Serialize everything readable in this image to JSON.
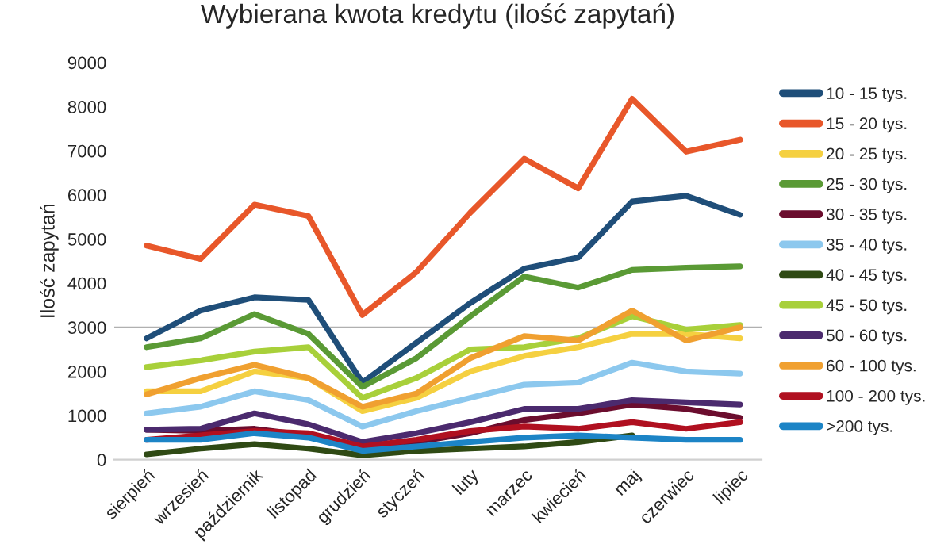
{
  "chart_data": {
    "type": "line",
    "title": "Wybierana kwota kredytu (ilość zapytań)",
    "ylabel": "Ilość zapytań",
    "categories": [
      "sierpień",
      "wrzesień",
      "październik",
      "listopad",
      "grudzień",
      "styczeń",
      "luty",
      "marzec",
      "kwiecień",
      "maj",
      "czerwiec",
      "lipiec"
    ],
    "series": [
      {
        "name": "10 - 15 tys.",
        "color": "#1f4e79",
        "values": [
          2750,
          3380,
          3680,
          3620,
          1750,
          2650,
          3550,
          4330,
          4580,
          5850,
          5980,
          5550
        ]
      },
      {
        "name": "15 - 20 tys.",
        "color": "#e8572a",
        "values": [
          4850,
          4550,
          5780,
          5520,
          3280,
          4250,
          5600,
          6820,
          6150,
          8180,
          6980,
          7250
        ]
      },
      {
        "name": "20 - 25 tys.",
        "color": "#f5d040",
        "values": [
          1550,
          1550,
          2000,
          1850,
          1100,
          1400,
          2000,
          2350,
          2550,
          2850,
          2850,
          2750
        ]
      },
      {
        "name": "25 - 30 tys.",
        "color": "#5a9a35",
        "values": [
          2550,
          2750,
          3300,
          2850,
          1650,
          2300,
          3250,
          4150,
          3900,
          4300,
          4350,
          4380
        ]
      },
      {
        "name": "30 - 35 tys.",
        "color": "#6b0d2e",
        "values": [
          680,
          650,
          700,
          550,
          300,
          400,
          600,
          900,
          1050,
          1250,
          1150,
          950
        ]
      },
      {
        "name": "35 - 40 tys.",
        "color": "#8cc8ee",
        "values": [
          1050,
          1200,
          1550,
          1350,
          750,
          1100,
          1400,
          1700,
          1750,
          2200,
          2000,
          1950
        ]
      },
      {
        "name": "40 - 45 tys.",
        "color": "#2f4a14",
        "values": [
          120,
          250,
          350,
          250,
          100,
          200,
          250,
          300,
          400,
          550,
          null,
          null
        ]
      },
      {
        "name": "45 - 50 tys.",
        "color": "#a8d03a",
        "values": [
          2100,
          2250,
          2450,
          2550,
          1400,
          1850,
          2500,
          2550,
          2750,
          3250,
          2950,
          3050
        ]
      },
      {
        "name": "50 - 60 tys.",
        "color": "#4b2a6e",
        "values": [
          680,
          700,
          1050,
          800,
          400,
          600,
          850,
          1150,
          1150,
          1350,
          1300,
          1250
        ]
      },
      {
        "name": "60 - 100 tys.",
        "color": "#f0a030",
        "values": [
          1480,
          1850,
          2150,
          1850,
          1200,
          1500,
          2300,
          2800,
          2700,
          3380,
          2700,
          3000
        ]
      },
      {
        "name": "100 - 200 tys.",
        "color": "#b01020",
        "values": [
          450,
          550,
          650,
          600,
          300,
          450,
          650,
          750,
          700,
          850,
          700,
          850
        ]
      },
      {
        "name": ">200 tys.",
        "color": "#1c84c6",
        "values": [
          450,
          450,
          600,
          500,
          200,
          300,
          400,
          500,
          550,
          500,
          450,
          450
        ]
      }
    ],
    "ylim": [
      0,
      9000
    ],
    "yticks": [
      0,
      1000,
      2000,
      3000,
      4000,
      5000,
      6000,
      7000,
      8000,
      9000
    ],
    "ref_lines": [
      {
        "axis": "y",
        "value": 3000,
        "color": "#b0b0b0"
      }
    ],
    "grid": false,
    "legend": "right",
    "marker": "none",
    "line_style": "solid"
  }
}
